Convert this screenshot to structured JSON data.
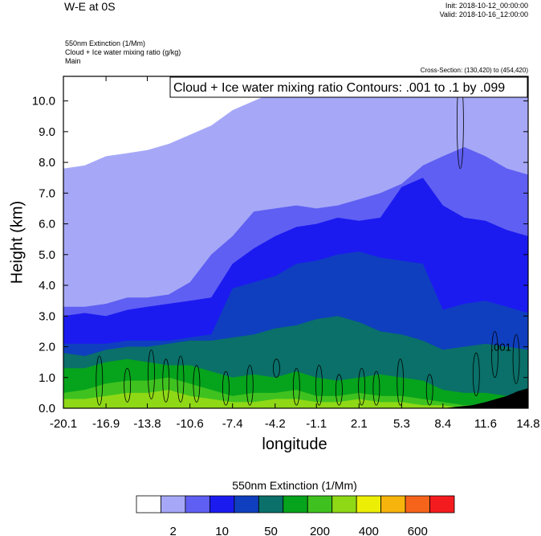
{
  "header": {
    "title": "W-E at 0S",
    "init": "Init: 2018-10-12_00:00:00",
    "valid": "Valid: 2018-10-16_12:00:00",
    "field1": "550nm Extinction   (1/Mm)",
    "field2": "Cloud + Ice water mixing ratio   (g/kg)",
    "field3": "Main",
    "cross_section": "Cross-Section: (130,420) to (454,420)"
  },
  "colors": {
    "levels": [
      "#ffffff",
      "#a6a8f7",
      "#5f5ff3",
      "#1b1bf0",
      "#0f3fbe",
      "#0a7069",
      "#06a31c",
      "#3fc21f",
      "#8fd816",
      "#ecef05",
      "#f7b40c",
      "#f6641b",
      "#f41b1f"
    ],
    "terrain": "#000000"
  },
  "chart_data": {
    "type": "heatmap",
    "title": "Cloud + Ice water mixing ratio Contours: .001 to .1 by .099",
    "xlabel": "longitude",
    "ylabel": "Height (km)",
    "xlim": [
      -20.1,
      14.8
    ],
    "ylim": [
      0,
      10.8
    ],
    "x_ticks": [
      "-20.1",
      "-16.9",
      "-13.8",
      "-10.6",
      "-7.4",
      "-4.2",
      "-1.1",
      "2.1",
      "5.3",
      "8.4",
      "11.6",
      "14.8"
    ],
    "y_ticks": [
      "0.0",
      "1.0",
      "2.0",
      "3.0",
      "4.0",
      "5.0",
      "6.0",
      "7.0",
      "8.0",
      "9.0",
      "10.0"
    ],
    "colorbar": {
      "title": "550nm Extinction  (1/Mm)",
      "labels": [
        "2",
        "10",
        "50",
        "200",
        "400",
        "600"
      ]
    },
    "contour_label": ".001",
    "boundary_tops_km": {
      "x": [
        -20.1,
        -18.5,
        -16.9,
        -15.3,
        -13.8,
        -12.2,
        -10.6,
        -9.0,
        -7.4,
        -5.8,
        -4.2,
        -2.6,
        -1.1,
        0.5,
        2.1,
        3.7,
        5.3,
        6.9,
        8.4,
        10.0,
        11.6,
        13.2,
        14.8
      ],
      "level1": [
        7.8,
        7.9,
        8.2,
        8.3,
        8.4,
        8.6,
        8.9,
        9.2,
        9.7,
        10.0,
        10.3,
        10.5,
        10.6,
        10.8,
        10.8,
        10.8,
        10.8,
        10.8,
        10.8,
        10.8,
        10.8,
        10.8,
        10.8
      ],
      "level2": [
        3.3,
        3.3,
        3.4,
        3.6,
        3.6,
        3.7,
        4.1,
        5.0,
        5.6,
        6.4,
        6.5,
        6.6,
        6.5,
        6.6,
        6.8,
        7.0,
        7.3,
        7.9,
        8.2,
        8.5,
        8.2,
        7.8,
        7.6
      ],
      "level3": [
        3.0,
        3.1,
        3.0,
        3.2,
        3.3,
        3.4,
        3.5,
        3.6,
        4.7,
        5.2,
        5.6,
        5.9,
        6.0,
        6.2,
        6.1,
        6.2,
        7.2,
        7.5,
        6.6,
        6.2,
        6.1,
        5.8,
        5.6
      ],
      "level4": [
        2.1,
        2.1,
        2.1,
        2.2,
        2.2,
        2.2,
        2.3,
        2.4,
        3.9,
        4.1,
        4.3,
        4.7,
        4.8,
        5.0,
        5.1,
        4.9,
        4.8,
        4.7,
        3.2,
        3.4,
        3.5,
        3.3,
        3.1
      ],
      "level5": [
        1.8,
        1.7,
        1.9,
        2.0,
        2.0,
        2.1,
        2.2,
        2.2,
        2.3,
        2.4,
        2.6,
        2.7,
        2.9,
        3.0,
        2.8,
        2.5,
        2.4,
        2.2,
        1.9,
        2.0,
        2.1,
        2.0,
        1.9
      ],
      "level6": [
        1.3,
        1.3,
        1.5,
        1.6,
        1.5,
        1.4,
        1.4,
        1.2,
        1.0,
        1.1,
        1.0,
        1.2,
        1.0,
        0.9,
        1.0,
        1.1,
        1.0,
        0.9,
        0.6,
        0.5,
        0.5,
        0.4,
        0.4
      ],
      "level7": [
        0.5,
        0.6,
        0.8,
        0.9,
        0.9,
        1.0,
        0.8,
        0.6,
        0.4,
        0.5,
        0.5,
        0.6,
        0.4,
        0.4,
        0.5,
        0.4,
        0.4,
        0.3,
        0.2,
        0.1,
        0.1,
        0.1,
        0.1
      ],
      "level8": [
        0.3,
        0.3,
        0.4,
        0.5,
        0.5,
        0.6,
        0.4,
        0.3,
        0.2,
        0.2,
        0.3,
        0.3,
        0.2,
        0.2,
        0.3,
        0.2,
        0.2,
        0.1,
        0.1,
        0.0,
        0.0,
        0.0,
        0.0
      ]
    },
    "cloud_contours": [
      {
        "x": -17.4,
        "y": [
          0.1,
          1.7
        ]
      },
      {
        "x": -15.3,
        "y": [
          0.2,
          1.3
        ]
      },
      {
        "x": -13.5,
        "y": [
          0.3,
          1.9
        ]
      },
      {
        "x": -12.4,
        "y": [
          0.2,
          1.6
        ]
      },
      {
        "x": -11.3,
        "y": [
          0.2,
          1.7
        ]
      },
      {
        "x": -10.1,
        "y": [
          0.2,
          1.4
        ]
      },
      {
        "x": -7.9,
        "y": [
          0.1,
          1.2
        ]
      },
      {
        "x": -6.1,
        "y": [
          0.1,
          1.4
        ]
      },
      {
        "x": -4.1,
        "y": [
          1.0,
          1.6
        ]
      },
      {
        "x": -2.6,
        "y": [
          0.1,
          1.3
        ]
      },
      {
        "x": -0.9,
        "y": [
          0.1,
          1.4
        ]
      },
      {
        "x": 0.6,
        "y": [
          0.1,
          1.1
        ]
      },
      {
        "x": 2.3,
        "y": [
          0.1,
          1.3
        ]
      },
      {
        "x": 3.4,
        "y": [
          0.1,
          1.2
        ]
      },
      {
        "x": 5.2,
        "y": [
          0.1,
          1.6
        ]
      },
      {
        "x": 7.4,
        "y": [
          0.1,
          1.1
        ]
      },
      {
        "x": 9.7,
        "y": [
          7.8,
          10.8
        ]
      },
      {
        "x": 10.9,
        "y": [
          0.4,
          1.8
        ]
      },
      {
        "x": 12.3,
        "y": [
          1.0,
          2.5
        ]
      },
      {
        "x": 13.9,
        "y": [
          0.8,
          2.4
        ]
      }
    ],
    "terrain": {
      "x": [
        8.4,
        9.5,
        10.6,
        11.6,
        12.4,
        13.2,
        14.0,
        14.8
      ],
      "height": [
        0.0,
        0.05,
        0.1,
        0.2,
        0.3,
        0.4,
        0.55,
        0.65
      ]
    }
  }
}
